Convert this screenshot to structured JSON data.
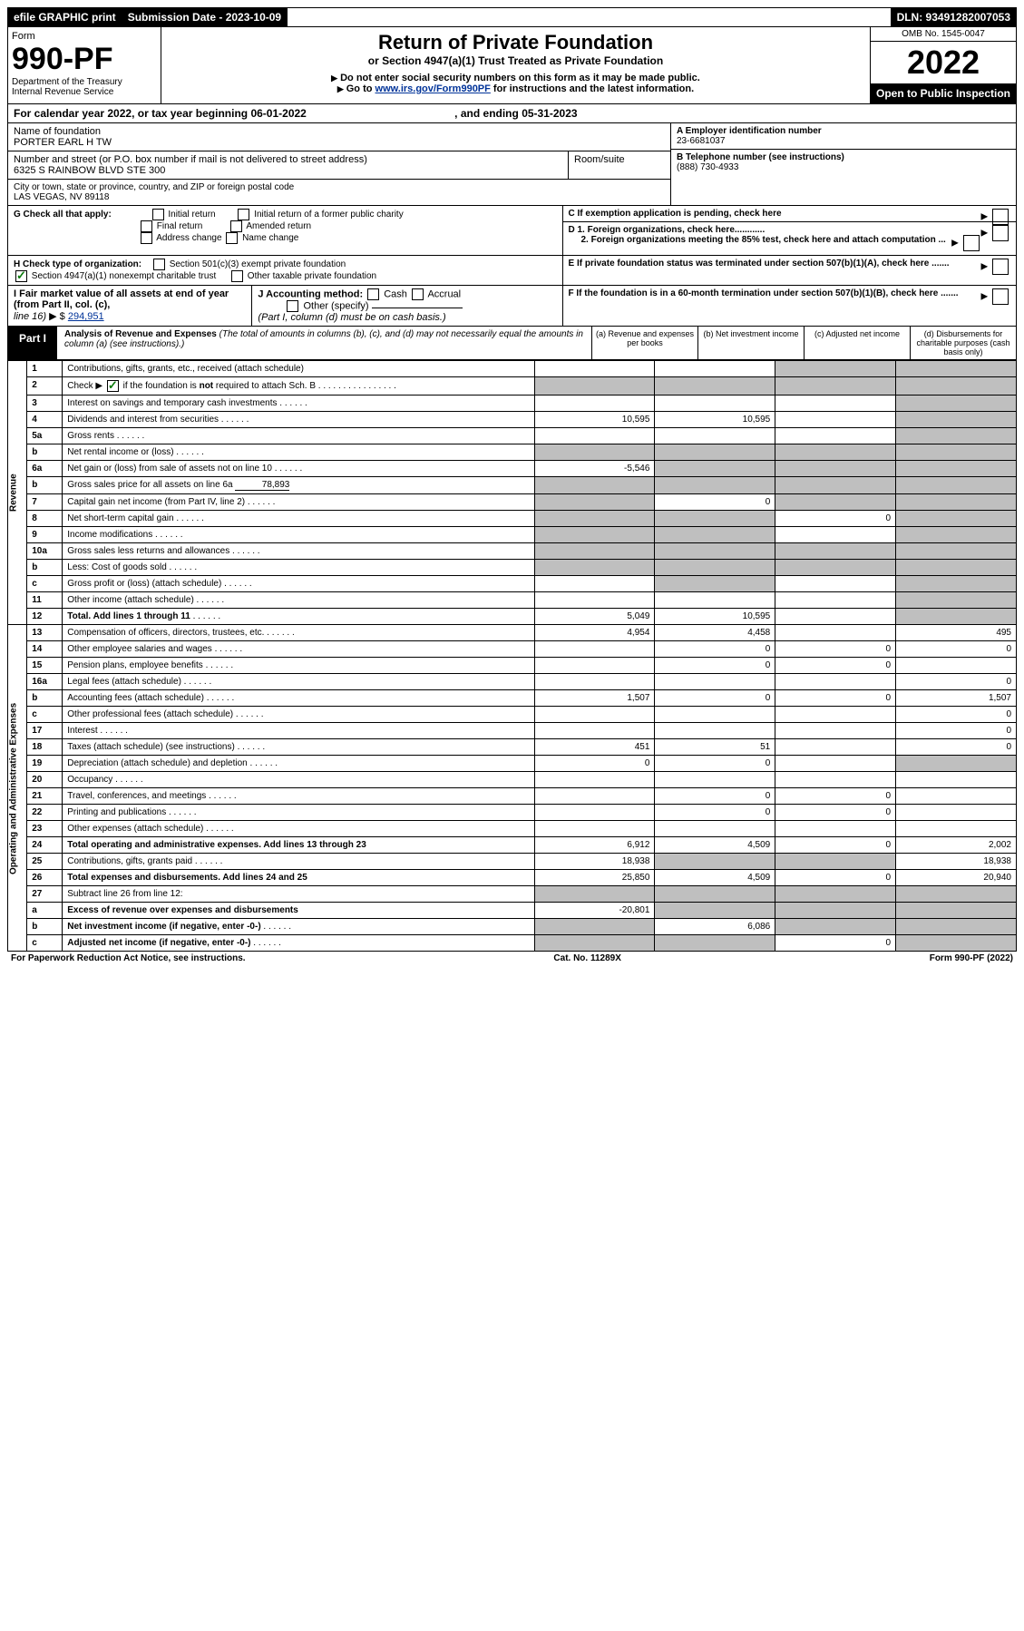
{
  "top": {
    "efile": "efile GRAPHIC print",
    "submission_label": "Submission Date - 2023-10-09",
    "dln": "DLN: 93491282007053"
  },
  "header": {
    "form": "Form",
    "form_number": "990-PF",
    "dept1": "Department of the Treasury",
    "dept2": "Internal Revenue Service",
    "title": "Return of Private Foundation",
    "subtitle": "or Section 4947(a)(1) Trust Treated as Private Foundation",
    "note1": "Do not enter social security numbers on this form as it may be made public.",
    "note2_pre": "Go to ",
    "note2_link": "www.irs.gov/Form990PF",
    "note2_post": " for instructions and the latest information.",
    "omb": "OMB No. 1545-0047",
    "year": "2022",
    "open": "Open to Public Inspection"
  },
  "cal_year": {
    "pre": "For calendar year 2022, or tax year beginning ",
    "begin": "06-01-2022",
    "mid": " , and ending ",
    "end": "05-31-2023"
  },
  "name_block": {
    "name_label": "Name of foundation",
    "name": "PORTER EARL H TW",
    "addr_label": "Number and street (or P.O. box number if mail is not delivered to street address)",
    "addr": "6325 S RAINBOW BLVD STE 300",
    "room_label": "Room/suite",
    "city_label": "City or town, state or province, country, and ZIP or foreign postal code",
    "city": "LAS VEGAS, NV  89118"
  },
  "right_block": {
    "a_label": "A Employer identification number",
    "a_val": "23-6681037",
    "b_label": "B Telephone number (see instructions)",
    "b_val": "(888) 730-4933",
    "c_label": "C If exemption application is pending, check here",
    "d1": "D 1. Foreign organizations, check here............",
    "d2": "2. Foreign organizations meeting the 85% test, check here and attach computation ...",
    "e": "E  If private foundation status was terminated under section 507(b)(1)(A), check here .......",
    "f": "F  If the foundation is in a 60-month termination under section 507(b)(1)(B), check here ......."
  },
  "g_block": {
    "label": "G Check all that apply:",
    "opts": [
      "Initial return",
      "Initial return of a former public charity",
      "Final return",
      "Amended return",
      "Address change",
      "Name change"
    ]
  },
  "h_block": {
    "label": "H Check type of organization:",
    "opt1": "Section 501(c)(3) exempt private foundation",
    "opt2": "Section 4947(a)(1) nonexempt charitable trust",
    "opt3": "Other taxable private foundation"
  },
  "i_block": {
    "label1": "I Fair market value of all assets at end of year (from Part II, col. (c),",
    "label2": "line 16)",
    "val": "294,951"
  },
  "j_block": {
    "label": "J Accounting method:",
    "cash": "Cash",
    "accrual": "Accrual",
    "other": "Other (specify)",
    "note": "(Part I, column (d) must be on cash basis.)"
  },
  "part1": {
    "label": "Part I",
    "title": "Analysis of Revenue and Expenses",
    "note": "(The total of amounts in columns (b), (c), and (d) may not necessarily equal the amounts in column (a) (see instructions).)",
    "col_a": "(a) Revenue and expenses per books",
    "col_b": "(b) Net investment income",
    "col_c": "(c) Adjusted net income",
    "col_d": "(d) Disbursements for charitable purposes (cash basis only)"
  },
  "sidebars": {
    "revenue": "Revenue",
    "expenses": "Operating and Administrative Expenses"
  },
  "rows": [
    {
      "n": "1",
      "desc": "Contributions, gifts, grants, etc., received (attach schedule)",
      "a": "",
      "b": "",
      "c": "s",
      "d": "s"
    },
    {
      "n": "2",
      "desc": "Check ▶ ☑ if the foundation is not required to attach Sch. B",
      "a": "s",
      "b": "s",
      "c": "s",
      "d": "s",
      "check": true
    },
    {
      "n": "3",
      "desc": "Interest on savings and temporary cash investments",
      "a": "",
      "b": "",
      "c": "",
      "d": "s"
    },
    {
      "n": "4",
      "desc": "Dividends and interest from securities",
      "a": "10,595",
      "b": "10,595",
      "c": "",
      "d": "s"
    },
    {
      "n": "5a",
      "desc": "Gross rents",
      "a": "",
      "b": "",
      "c": "",
      "d": "s"
    },
    {
      "n": "b",
      "desc": "Net rental income or (loss)",
      "a": "s",
      "b": "s",
      "c": "s",
      "d": "s"
    },
    {
      "n": "6a",
      "desc": "Net gain or (loss) from sale of assets not on line 10",
      "a": "-5,546",
      "b": "s",
      "c": "s",
      "d": "s"
    },
    {
      "n": "b",
      "desc": "Gross sales price for all assets on line 6a",
      "inline": "78,893",
      "a": "s",
      "b": "s",
      "c": "s",
      "d": "s"
    },
    {
      "n": "7",
      "desc": "Capital gain net income (from Part IV, line 2)",
      "a": "s",
      "b": "0",
      "c": "s",
      "d": "s"
    },
    {
      "n": "8",
      "desc": "Net short-term capital gain",
      "a": "s",
      "b": "s",
      "c": "0",
      "d": "s"
    },
    {
      "n": "9",
      "desc": "Income modifications",
      "a": "s",
      "b": "s",
      "c": "",
      "d": "s"
    },
    {
      "n": "10a",
      "desc": "Gross sales less returns and allowances",
      "a": "s",
      "b": "s",
      "c": "s",
      "d": "s"
    },
    {
      "n": "b",
      "desc": "Less: Cost of goods sold",
      "a": "s",
      "b": "s",
      "c": "s",
      "d": "s"
    },
    {
      "n": "c",
      "desc": "Gross profit or (loss) (attach schedule)",
      "a": "",
      "b": "s",
      "c": "",
      "d": "s"
    },
    {
      "n": "11",
      "desc": "Other income (attach schedule)",
      "a": "",
      "b": "",
      "c": "",
      "d": "s"
    },
    {
      "n": "12",
      "desc": "Total. Add lines 1 through 11",
      "bold": true,
      "a": "5,049",
      "b": "10,595",
      "c": "",
      "d": "s"
    },
    {
      "n": "13",
      "desc": "Compensation of officers, directors, trustees, etc.",
      "a": "4,954",
      "b": "4,458",
      "c": "",
      "d": "495"
    },
    {
      "n": "14",
      "desc": "Other employee salaries and wages",
      "a": "",
      "b": "0",
      "c": "0",
      "d": "0"
    },
    {
      "n": "15",
      "desc": "Pension plans, employee benefits",
      "a": "",
      "b": "0",
      "c": "0",
      "d": ""
    },
    {
      "n": "16a",
      "desc": "Legal fees (attach schedule)",
      "a": "",
      "b": "",
      "c": "",
      "d": "0"
    },
    {
      "n": "b",
      "desc": "Accounting fees (attach schedule)",
      "a": "1,507",
      "b": "0",
      "c": "0",
      "d": "1,507"
    },
    {
      "n": "c",
      "desc": "Other professional fees (attach schedule)",
      "a": "",
      "b": "",
      "c": "",
      "d": "0"
    },
    {
      "n": "17",
      "desc": "Interest",
      "a": "",
      "b": "",
      "c": "",
      "d": "0"
    },
    {
      "n": "18",
      "desc": "Taxes (attach schedule) (see instructions)",
      "a": "451",
      "b": "51",
      "c": "",
      "d": "0"
    },
    {
      "n": "19",
      "desc": "Depreciation (attach schedule) and depletion",
      "a": "0",
      "b": "0",
      "c": "",
      "d": "s"
    },
    {
      "n": "20",
      "desc": "Occupancy",
      "a": "",
      "b": "",
      "c": "",
      "d": ""
    },
    {
      "n": "21",
      "desc": "Travel, conferences, and meetings",
      "a": "",
      "b": "0",
      "c": "0",
      "d": ""
    },
    {
      "n": "22",
      "desc": "Printing and publications",
      "a": "",
      "b": "0",
      "c": "0",
      "d": ""
    },
    {
      "n": "23",
      "desc": "Other expenses (attach schedule)",
      "a": "",
      "b": "",
      "c": "",
      "d": ""
    },
    {
      "n": "24",
      "desc": "Total operating and administrative expenses. Add lines 13 through 23",
      "bold": true,
      "a": "6,912",
      "b": "4,509",
      "c": "0",
      "d": "2,002"
    },
    {
      "n": "25",
      "desc": "Contributions, gifts, grants paid",
      "a": "18,938",
      "b": "s",
      "c": "s",
      "d": "18,938"
    },
    {
      "n": "26",
      "desc": "Total expenses and disbursements. Add lines 24 and 25",
      "bold": true,
      "a": "25,850",
      "b": "4,509",
      "c": "0",
      "d": "20,940"
    },
    {
      "n": "27",
      "desc": "Subtract line 26 from line 12:",
      "a": "s",
      "b": "s",
      "c": "s",
      "d": "s"
    },
    {
      "n": "a",
      "desc": "Excess of revenue over expenses and disbursements",
      "bold": true,
      "a": "-20,801",
      "b": "s",
      "c": "s",
      "d": "s"
    },
    {
      "n": "b",
      "desc": "Net investment income (if negative, enter -0-)",
      "bold": true,
      "a": "s",
      "b": "6,086",
      "c": "s",
      "d": "s"
    },
    {
      "n": "c",
      "desc": "Adjusted net income (if negative, enter -0-)",
      "bold": true,
      "a": "s",
      "b": "s",
      "c": "0",
      "d": "s"
    }
  ],
  "footer": {
    "left": "For Paperwork Reduction Act Notice, see instructions.",
    "center": "Cat. No. 11289X",
    "right": "Form 990-PF (2022)"
  }
}
